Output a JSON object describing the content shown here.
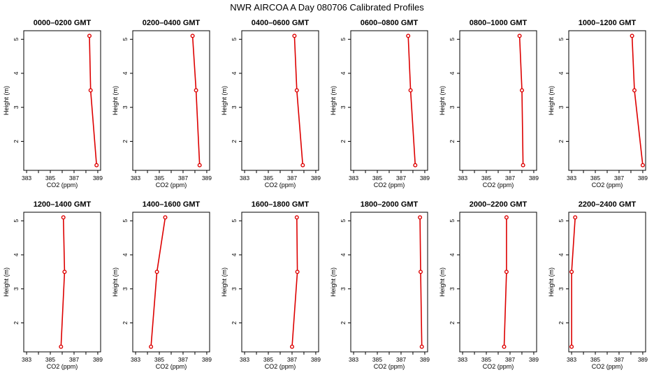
{
  "figure": {
    "title": "NWR AIRCOA A  Day 080706  Calibrated Profiles"
  },
  "colors": {
    "series": "#dd0000",
    "frame": "#000000",
    "background": "#ffffff"
  },
  "chart_data": [
    {
      "type": "line",
      "title": "0000–0200 GMT",
      "xlabel": "CO2 (ppm)",
      "ylabel": "Height (m)",
      "xlim": [
        383,
        389
      ],
      "ylim": [
        1.3,
        5.1
      ],
      "xticks": [
        "383",
        "385",
        "387",
        "389"
      ],
      "yticks": [
        "2",
        "3",
        "4",
        "5"
      ],
      "grid": false,
      "legend": "none",
      "series": [
        {
          "x": [
            388.3,
            388.4,
            388.9
          ],
          "y": [
            5.1,
            3.5,
            1.3
          ]
        }
      ]
    },
    {
      "type": "line",
      "title": "0200–0400 GMT",
      "xlabel": "CO2 (ppm)",
      "ylabel": "Height (m)",
      "xlim": [
        383,
        389
      ],
      "ylim": [
        1.3,
        5.1
      ],
      "xticks": [
        "383",
        "385",
        "387",
        "389"
      ],
      "yticks": [
        "2",
        "3",
        "4",
        "5"
      ],
      "grid": false,
      "legend": "none",
      "series": [
        {
          "x": [
            387.8,
            388.1,
            388.4
          ],
          "y": [
            5.1,
            3.5,
            1.3
          ]
        }
      ]
    },
    {
      "type": "line",
      "title": "0400–0600 GMT",
      "xlabel": "CO2 (ppm)",
      "ylabel": "Height (m)",
      "xlim": [
        383,
        389
      ],
      "ylim": [
        1.3,
        5.1
      ],
      "xticks": [
        "383",
        "385",
        "387",
        "389"
      ],
      "yticks": [
        "2",
        "3",
        "4",
        "5"
      ],
      "grid": false,
      "legend": "none",
      "series": [
        {
          "x": [
            387.2,
            387.4,
            387.9
          ],
          "y": [
            5.1,
            3.5,
            1.3
          ]
        }
      ]
    },
    {
      "type": "line",
      "title": "0600–0800 GMT",
      "xlabel": "CO2 (ppm)",
      "ylabel": "Height (m)",
      "xlim": [
        383,
        389
      ],
      "ylim": [
        1.3,
        5.1
      ],
      "xticks": [
        "383",
        "385",
        "387",
        "389"
      ],
      "yticks": [
        "2",
        "3",
        "4",
        "5"
      ],
      "grid": false,
      "legend": "none",
      "series": [
        {
          "x": [
            387.6,
            387.8,
            388.2
          ],
          "y": [
            5.1,
            3.5,
            1.3
          ]
        }
      ]
    },
    {
      "type": "line",
      "title": "0800–1000 GMT",
      "xlabel": "CO2 (ppm)",
      "ylabel": "Height (m)",
      "xlim": [
        383,
        389
      ],
      "ylim": [
        1.3,
        5.1
      ],
      "xticks": [
        "383",
        "385",
        "387",
        "389"
      ],
      "yticks": [
        "2",
        "3",
        "4",
        "5"
      ],
      "grid": false,
      "legend": "none",
      "series": [
        {
          "x": [
            387.8,
            388.0,
            388.1
          ],
          "y": [
            5.1,
            3.5,
            1.3
          ]
        }
      ]
    },
    {
      "type": "line",
      "title": "1000–1200 GMT",
      "xlabel": "CO2 (ppm)",
      "ylabel": "Height (m)",
      "xlim": [
        383,
        389
      ],
      "ylim": [
        1.3,
        5.1
      ],
      "xticks": [
        "383",
        "385",
        "387",
        "389"
      ],
      "yticks": [
        "2",
        "3",
        "4",
        "5"
      ],
      "grid": false,
      "legend": "none",
      "series": [
        {
          "x": [
            388.1,
            388.3,
            389.0
          ],
          "y": [
            5.1,
            3.5,
            1.3
          ]
        }
      ]
    },
    {
      "type": "line",
      "title": "1200–1400 GMT",
      "xlabel": "CO2 (ppm)",
      "ylabel": "Height (m)",
      "xlim": [
        383,
        389
      ],
      "ylim": [
        1.3,
        5.1
      ],
      "xticks": [
        "383",
        "385",
        "387",
        "389"
      ],
      "yticks": [
        "2",
        "3",
        "4",
        "5"
      ],
      "grid": false,
      "legend": "none",
      "series": [
        {
          "x": [
            386.1,
            386.2,
            385.9
          ],
          "y": [
            5.1,
            3.5,
            1.3
          ]
        }
      ]
    },
    {
      "type": "line",
      "title": "1400–1600 GMT",
      "xlabel": "CO2 (ppm)",
      "ylabel": "Height (m)",
      "xlim": [
        383,
        389
      ],
      "ylim": [
        1.3,
        5.1
      ],
      "xticks": [
        "383",
        "385",
        "387",
        "389"
      ],
      "yticks": [
        "2",
        "3",
        "4",
        "5"
      ],
      "grid": false,
      "legend": "none",
      "series": [
        {
          "x": [
            385.5,
            384.8,
            384.3
          ],
          "y": [
            5.1,
            3.5,
            1.3
          ]
        }
      ]
    },
    {
      "type": "line",
      "title": "1600–1800 GMT",
      "xlabel": "CO2 (ppm)",
      "ylabel": "Height (m)",
      "xlim": [
        383,
        389
      ],
      "ylim": [
        1.3,
        5.1
      ],
      "xticks": [
        "383",
        "385",
        "387",
        "389"
      ],
      "yticks": [
        "2",
        "3",
        "4",
        "5"
      ],
      "grid": false,
      "legend": "none",
      "series": [
        {
          "x": [
            387.4,
            387.45,
            387.0
          ],
          "y": [
            5.1,
            3.5,
            1.3
          ]
        }
      ]
    },
    {
      "type": "line",
      "title": "1800–2000 GMT",
      "xlabel": "CO2 (ppm)",
      "ylabel": "Height (m)",
      "xlim": [
        383,
        389
      ],
      "ylim": [
        1.3,
        5.1
      ],
      "xticks": [
        "383",
        "385",
        "387",
        "389"
      ],
      "yticks": [
        "2",
        "3",
        "4",
        "5"
      ],
      "grid": false,
      "legend": "none",
      "series": [
        {
          "x": [
            388.6,
            388.65,
            388.75
          ],
          "y": [
            5.1,
            3.5,
            1.3
          ]
        }
      ]
    },
    {
      "type": "line",
      "title": "2000–2200 GMT",
      "xlabel": "CO2 (ppm)",
      "ylabel": "Height (m)",
      "xlim": [
        383,
        389
      ],
      "ylim": [
        1.3,
        5.1
      ],
      "xticks": [
        "383",
        "385",
        "387",
        "389"
      ],
      "yticks": [
        "2",
        "3",
        "4",
        "5"
      ],
      "grid": false,
      "legend": "none",
      "series": [
        {
          "x": [
            386.7,
            386.7,
            386.5
          ],
          "y": [
            5.1,
            3.5,
            1.3
          ]
        }
      ]
    },
    {
      "type": "line",
      "title": "2200–2400 GMT",
      "xlabel": "CO2 (ppm)",
      "ylabel": "Height (m)",
      "xlim": [
        383,
        389
      ],
      "ylim": [
        1.3,
        5.1
      ],
      "xticks": [
        "383",
        "385",
        "387",
        "389"
      ],
      "yticks": [
        "2",
        "3",
        "4",
        "5"
      ],
      "grid": false,
      "legend": "none",
      "series": [
        {
          "x": [
            383.3,
            383.0,
            383.0
          ],
          "y": [
            5.1,
            3.5,
            1.3
          ]
        }
      ]
    }
  ]
}
